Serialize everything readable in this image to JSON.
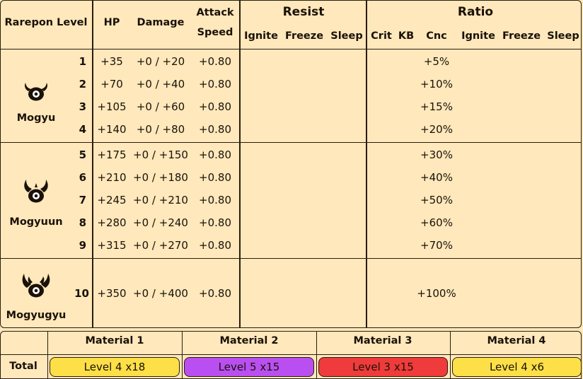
{
  "header": {
    "rarepon_level": "Rarepon Level",
    "hp": "HP",
    "damage": "Damage",
    "attack_line1": "Attack",
    "attack_line2": "Speed",
    "resist": "Resist",
    "ratio": "Ratio",
    "resist_cols": [
      "Ignite",
      "Freeze",
      "Sleep"
    ],
    "ratio_cols": [
      "Crit",
      "KB",
      "Cnc",
      "Ignite",
      "Freeze",
      "Sleep"
    ]
  },
  "rarepons": [
    {
      "name": "Mogyu",
      "icon": "mogyu-icon"
    },
    {
      "name": "Mogyuun",
      "icon": "mogyuun-icon"
    },
    {
      "name": "Mogyugyu",
      "icon": "mogyugyu-icon"
    }
  ],
  "rows": [
    {
      "level": "1",
      "hp": "+35",
      "damage": "+0 / +20",
      "attack_speed": "+0.80",
      "cnc": "+5%"
    },
    {
      "level": "2",
      "hp": "+70",
      "damage": "+0 / +40",
      "attack_speed": "+0.80",
      "cnc": "+10%"
    },
    {
      "level": "3",
      "hp": "+105",
      "damage": "+0 / +60",
      "attack_speed": "+0.80",
      "cnc": "+15%"
    },
    {
      "level": "4",
      "hp": "+140",
      "damage": "+0 / +80",
      "attack_speed": "+0.80",
      "cnc": "+20%"
    },
    {
      "level": "5",
      "hp": "+175",
      "damage": "+0 / +150",
      "attack_speed": "+0.80",
      "cnc": "+30%"
    },
    {
      "level": "6",
      "hp": "+210",
      "damage": "+0 / +180",
      "attack_speed": "+0.80",
      "cnc": "+40%"
    },
    {
      "level": "7",
      "hp": "+245",
      "damage": "+0 / +210",
      "attack_speed": "+0.80",
      "cnc": "+50%"
    },
    {
      "level": "8",
      "hp": "+280",
      "damage": "+0 / +240",
      "attack_speed": "+0.80",
      "cnc": "+60%"
    },
    {
      "level": "9",
      "hp": "+315",
      "damage": "+0 / +270",
      "attack_speed": "+0.80",
      "cnc": "+70%"
    },
    {
      "level": "10",
      "hp": "+350",
      "damage": "+0 / +400",
      "attack_speed": "+0.80",
      "cnc": "+100%"
    }
  ],
  "materials": {
    "total_label": "Total",
    "headers": [
      "Material 1",
      "Material 2",
      "Material 3",
      "Material 4"
    ],
    "values": [
      "Level 4 x18",
      "Level 5 x15",
      "Level 3 x15",
      "Level 4 x6"
    ],
    "colors": [
      "#fde047",
      "#b94ff0",
      "#ef3b3b",
      "#fde047"
    ]
  },
  "colors": {
    "background": "#fee8bc",
    "border": "#2a1c0e"
  }
}
